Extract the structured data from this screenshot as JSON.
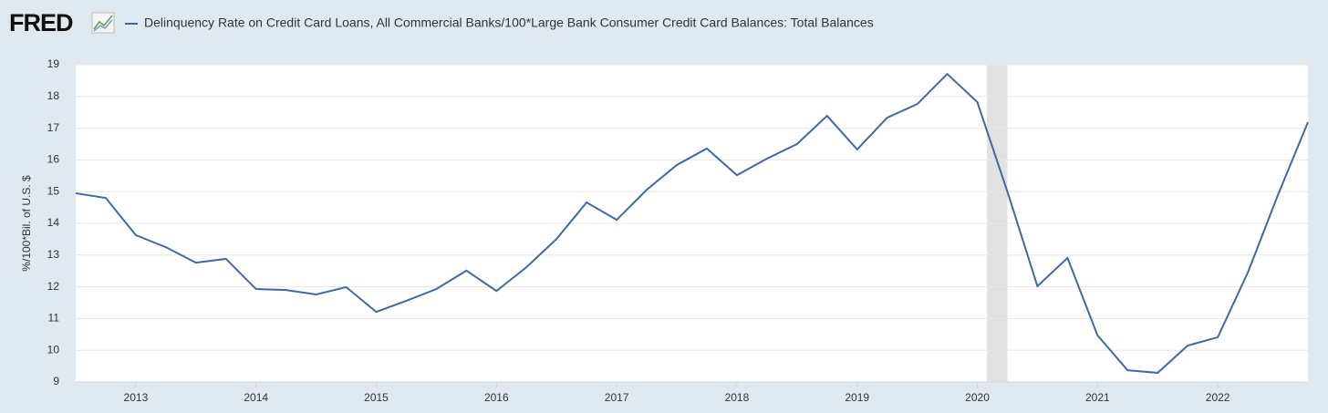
{
  "logo": "FRED",
  "chart_data": {
    "type": "line",
    "y_label": "%/100*Bil. of U.S. $",
    "x": [
      2012.5,
      2012.75,
      2013,
      2013.25,
      2013.5,
      2013.75,
      2014,
      2014.25,
      2014.5,
      2014.75,
      2015,
      2015.25,
      2015.5,
      2015.75,
      2016,
      2016.25,
      2016.5,
      2016.75,
      2017,
      2017.25,
      2017.5,
      2017.75,
      2018,
      2018.25,
      2018.5,
      2018.75,
      2019,
      2019.25,
      2019.5,
      2019.75,
      2020,
      2020.25,
      2020.5,
      2020.75,
      2021,
      2021.25,
      2021.5,
      2021.75,
      2022,
      2022.25,
      2022.5,
      2022.75
    ],
    "series": [
      {
        "name": "Delinquency Rate on Credit Card Loans, All Commercial Banks/100*Large Bank Consumer Credit Card Balances: Total Balances",
        "color": "#3e6aa3",
        "values": [
          14.95,
          14.8,
          13.63,
          13.25,
          12.76,
          12.88,
          11.93,
          11.9,
          11.76,
          11.99,
          11.21,
          11.56,
          11.93,
          12.51,
          11.87,
          12.62,
          13.51,
          14.66,
          14.11,
          15.06,
          15.84,
          16.36,
          15.52,
          16.04,
          16.5,
          17.39,
          16.33,
          17.33,
          17.76,
          18.71,
          17.82,
          15.0,
          12.02,
          12.91,
          10.47,
          9.37,
          9.29,
          10.15,
          10.41,
          12.45,
          14.89,
          17.19
        ]
      }
    ],
    "recession": [
      2020.08,
      2020.25
    ],
    "recession_color": "#e1e1e1",
    "xlim": [
      2012.5,
      2022.75
    ],
    "xticks": [
      2013,
      2014,
      2015,
      2016,
      2017,
      2018,
      2019,
      2020,
      2021,
      2022
    ],
    "ylim": [
      9,
      19
    ],
    "yticks": [
      9,
      10,
      11,
      12,
      13,
      14,
      15,
      16,
      17,
      18,
      19
    ],
    "grid": true
  }
}
